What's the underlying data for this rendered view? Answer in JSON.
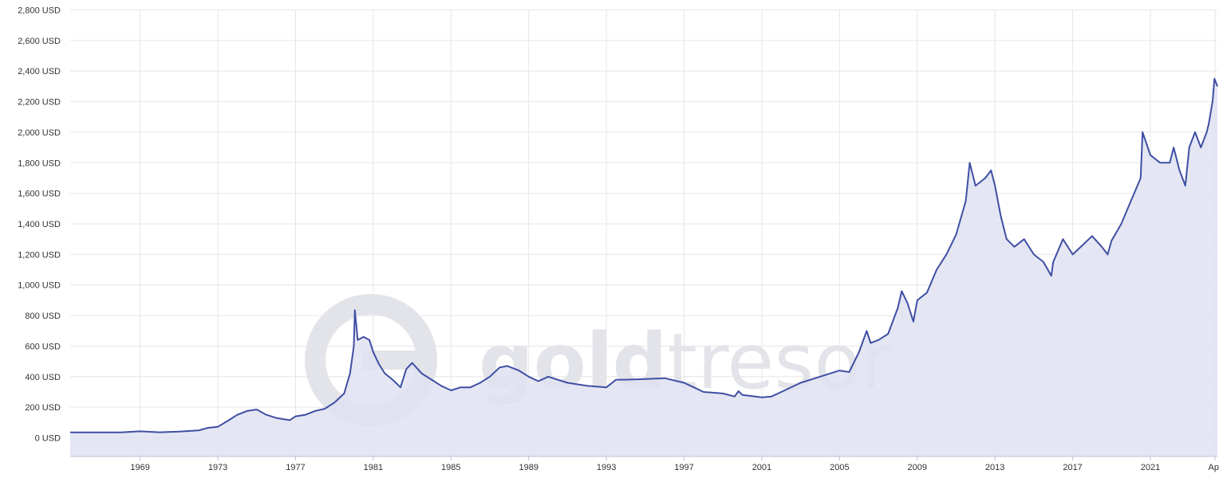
{
  "watermark": {
    "brand_text_bold": "gold",
    "brand_text_light": "tresor",
    "color": "#e3e4ea"
  },
  "colors": {
    "line": "#3f4fa3",
    "area": "#dfe2f1",
    "grid": "#e6e6e6",
    "axis_line": "#bfc3cf"
  },
  "chart_data": {
    "type": "area",
    "title": "",
    "xlabel": "",
    "ylabel": "",
    "y_unit_suffix": " USD",
    "ylim": [
      -100,
      2800
    ],
    "xlim": [
      1965.4,
      2024.45
    ],
    "grid": "on",
    "y_ticks": [
      0,
      200,
      400,
      600,
      800,
      1000,
      1200,
      1400,
      1600,
      1800,
      2000,
      2200,
      2400,
      2600,
      2800
    ],
    "y_tick_labels": [
      "0 USD",
      "200 USD",
      "400 USD",
      "600 USD",
      "800 USD",
      "1,000 USD",
      "1,200 USD",
      "1,400 USD",
      "1,600 USD",
      "1,800 USD",
      "2,000 USD",
      "2,200 USD",
      "2,400 USD",
      "2,600 USD",
      "2,800 USD"
    ],
    "x_ticks": [
      1969,
      1973,
      1977,
      1981,
      1985,
      1989,
      1993,
      1997,
      2001,
      2005,
      2009,
      2013,
      2017,
      2021,
      2024.33
    ],
    "x_tick_labels": [
      "1969",
      "1973",
      "1977",
      "1981",
      "1985",
      "1989",
      "1993",
      "1997",
      "2001",
      "2005",
      "2009",
      "2013",
      "2017",
      "2021",
      "Apr"
    ],
    "series": [
      {
        "x": [
          1965.4,
          1968.0,
          1969.0,
          1970.0,
          1971.0,
          1972.0,
          1972.5,
          1973.0,
          1973.5,
          1974.0,
          1974.5,
          1975.0,
          1975.5,
          1976.0,
          1976.7,
          1977.0,
          1977.5,
          1978.0,
          1978.5,
          1979.0,
          1979.5,
          1979.8,
          1980.0,
          1980.05,
          1980.2,
          1980.5,
          1980.8,
          1981.0,
          1981.3,
          1981.6,
          1982.0,
          1982.4,
          1982.7,
          1983.0,
          1983.5,
          1984.0,
          1984.5,
          1985.0,
          1985.5,
          1986.0,
          1986.5,
          1987.0,
          1987.5,
          1987.9,
          1988.5,
          1989.0,
          1989.5,
          1990.0,
          1991.0,
          1992.0,
          1993.0,
          1993.5,
          1994.0,
          1995.0,
          1996.0,
          1997.0,
          1997.5,
          1998.0,
          1999.0,
          1999.6,
          1999.8,
          2000.0,
          2001.0,
          2001.5,
          2002.0,
          2003.0,
          2004.0,
          2005.0,
          2005.5,
          2006.0,
          2006.4,
          2006.6,
          2007.0,
          2007.5,
          2008.0,
          2008.2,
          2008.5,
          2008.8,
          2009.0,
          2009.5,
          2010.0,
          2010.5,
          2011.0,
          2011.5,
          2011.7,
          2012.0,
          2012.5,
          2012.8,
          2013.0,
          2013.3,
          2013.6,
          2014.0,
          2014.5,
          2015.0,
          2015.5,
          2015.9,
          2016.0,
          2016.5,
          2017.0,
          2017.5,
          2018.0,
          2018.5,
          2018.8,
          2019.0,
          2019.5,
          2020.0,
          2020.5,
          2020.6,
          2021.0,
          2021.5,
          2022.0,
          2022.2,
          2022.5,
          2022.8,
          2023.0,
          2023.3,
          2023.6,
          2023.9,
          2024.0,
          2024.2,
          2024.3,
          2024.45
        ],
        "y": [
          35,
          35,
          42,
          36,
          40,
          48,
          65,
          72,
          110,
          150,
          175,
          185,
          150,
          130,
          115,
          140,
          150,
          175,
          190,
          230,
          290,
          420,
          600,
          835,
          640,
          660,
          640,
          560,
          480,
          420,
          380,
          330,
          450,
          490,
          420,
          380,
          340,
          310,
          330,
          330,
          360,
          400,
          460,
          470,
          440,
          400,
          370,
          400,
          360,
          340,
          330,
          380,
          380,
          385,
          390,
          360,
          330,
          300,
          290,
          270,
          305,
          280,
          265,
          270,
          300,
          360,
          400,
          440,
          430,
          560,
          700,
          620,
          640,
          680,
          850,
          960,
          880,
          760,
          900,
          950,
          1100,
          1200,
          1330,
          1550,
          1800,
          1650,
          1700,
          1750,
          1650,
          1450,
          1300,
          1250,
          1300,
          1200,
          1150,
          1060,
          1150,
          1300,
          1200,
          1260,
          1320,
          1250,
          1200,
          1290,
          1400,
          1550,
          1700,
          2000,
          1850,
          1800,
          1800,
          1900,
          1750,
          1650,
          1900,
          2000,
          1900,
          2000,
          2050,
          2200,
          2350,
          2300
        ]
      }
    ]
  }
}
